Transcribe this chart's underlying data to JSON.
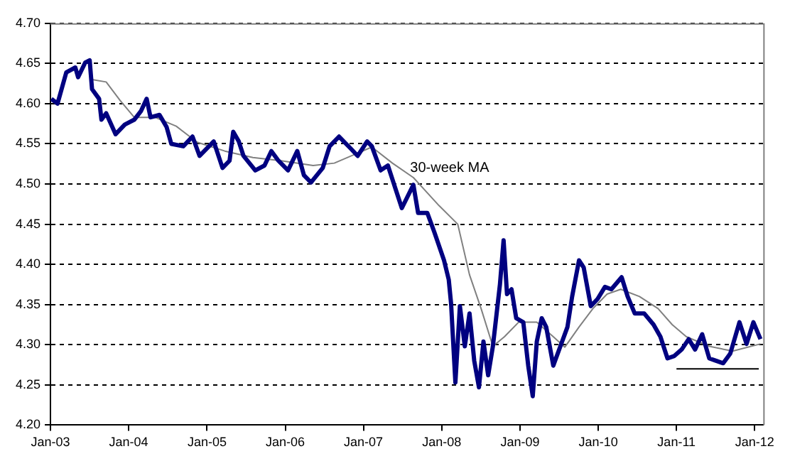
{
  "chart_data": {
    "type": "line",
    "xlim": [
      "2003-01-01",
      "2012-02-10"
    ],
    "xticks": [
      {
        "value": "2003-01-01",
        "label": "Jan-03"
      },
      {
        "value": "2004-01-01",
        "label": "Jan-04"
      },
      {
        "value": "2005-01-01",
        "label": "Jan-05"
      },
      {
        "value": "2006-01-01",
        "label": "Jan-06"
      },
      {
        "value": "2007-01-01",
        "label": "Jan-07"
      },
      {
        "value": "2008-01-01",
        "label": "Jan-08"
      },
      {
        "value": "2009-01-01",
        "label": "Jan-09"
      },
      {
        "value": "2010-01-01",
        "label": "Jan-10"
      },
      {
        "value": "2011-01-01",
        "label": "Jan-11"
      },
      {
        "value": "2012-01-01",
        "label": "Jan-12"
      }
    ],
    "ylim": [
      4.2,
      4.7
    ],
    "yticks": [
      {
        "value": 4.2,
        "label": "4.20"
      },
      {
        "value": 4.25,
        "label": "4.25"
      },
      {
        "value": 4.3,
        "label": "4.30"
      },
      {
        "value": 4.35,
        "label": "4.35"
      },
      {
        "value": 4.4,
        "label": "4.40"
      },
      {
        "value": 4.45,
        "label": "4.45"
      },
      {
        "value": 4.5,
        "label": "4.50"
      },
      {
        "value": 4.55,
        "label": "4.55"
      },
      {
        "value": 4.6,
        "label": "4.60"
      },
      {
        "value": 4.65,
        "label": "4.65"
      },
      {
        "value": 4.7,
        "label": "4.70"
      }
    ],
    "grid": "y",
    "legend": false,
    "marker": "none",
    "annotations": [
      "30-week MA"
    ],
    "series": [
      {
        "color": "#000080",
        "x": [
          "2003-01-05",
          "2003-02-03",
          "2003-03-16",
          "2003-04-27",
          "2003-05-10",
          "2003-06-12",
          "2003-07-03",
          "2003-07-14",
          "2003-08-16",
          "2003-08-27",
          "2003-09-18",
          "2003-11-01",
          "2003-12-14",
          "2004-01-27",
          "2004-02-28",
          "2004-03-25",
          "2004-04-12",
          "2004-05-24",
          "2004-06-26",
          "2004-07-18",
          "2004-09-12",
          "2004-10-25",
          "2004-11-27",
          "2005-02-01",
          "2005-03-14",
          "2005-04-16",
          "2005-05-03",
          "2005-05-29",
          "2005-06-20",
          "2005-08-14",
          "2005-09-26",
          "2005-10-28",
          "2005-11-30",
          "2006-01-14",
          "2006-02-26",
          "2006-03-29",
          "2006-05-01",
          "2006-06-25",
          "2006-07-27",
          "2006-09-09",
          "2006-11-03",
          "2006-12-05",
          "2007-01-18",
          "2007-02-09",
          "2007-03-22",
          "2007-04-25",
          "2007-06-29",
          "2007-08-22",
          "2007-09-13",
          "2007-10-26",
          "2007-11-28",
          "2008-01-12",
          "2008-02-03",
          "2008-02-14",
          "2008-03-05",
          "2008-03-26",
          "2008-04-18",
          "2008-05-10",
          "2008-06-01",
          "2008-06-23",
          "2008-07-14",
          "2008-08-05",
          "2008-08-27",
          "2008-09-29",
          "2008-10-16",
          "2008-11-01",
          "2008-11-22",
          "2008-12-14",
          "2009-01-16",
          "2009-02-08",
          "2009-03-01",
          "2009-03-20",
          "2009-04-12",
          "2009-05-03",
          "2009-06-05",
          "2009-07-08",
          "2009-08-10",
          "2009-09-01",
          "2009-10-03",
          "2009-10-25",
          "2009-11-27",
          "2009-12-29",
          "2010-02-01",
          "2010-03-03",
          "2010-04-20",
          "2010-05-18",
          "2010-06-20",
          "2010-08-03",
          "2010-09-16",
          "2010-10-18",
          "2010-11-20",
          "2010-12-22",
          "2011-01-25",
          "2011-02-27",
          "2011-03-29",
          "2011-05-01",
          "2011-06-03",
          "2011-07-05",
          "2011-08-07",
          "2011-09-09",
          "2011-10-22",
          "2011-11-24",
          "2011-12-26",
          "2012-01-28"
        ],
        "values": [
          4.606,
          4.6,
          4.639,
          4.645,
          4.633,
          4.651,
          4.654,
          4.618,
          4.606,
          4.58,
          4.588,
          4.562,
          4.574,
          4.58,
          4.591,
          4.606,
          4.583,
          4.586,
          4.571,
          4.55,
          4.547,
          4.559,
          4.535,
          4.553,
          4.52,
          4.529,
          4.565,
          4.553,
          4.535,
          4.517,
          4.523,
          4.541,
          4.529,
          4.517,
          4.541,
          4.511,
          4.502,
          4.52,
          4.547,
          4.559,
          4.544,
          4.535,
          4.553,
          4.547,
          4.517,
          4.523,
          4.47,
          4.499,
          4.464,
          4.464,
          4.44,
          4.405,
          4.381,
          4.351,
          4.253,
          4.348,
          4.298,
          4.339,
          4.28,
          4.247,
          4.304,
          4.262,
          4.298,
          4.375,
          4.43,
          4.363,
          4.369,
          4.333,
          4.328,
          4.274,
          4.236,
          4.304,
          4.333,
          4.322,
          4.274,
          4.298,
          4.322,
          4.36,
          4.405,
          4.396,
          4.348,
          4.357,
          4.372,
          4.369,
          4.384,
          4.36,
          4.339,
          4.339,
          4.325,
          4.31,
          4.283,
          4.286,
          4.294,
          4.307,
          4.294,
          4.313,
          4.283,
          4.28,
          4.277,
          4.289,
          4.328,
          4.301,
          4.328,
          4.307
        ]
      },
      {
        "color": "#808080",
        "x": [
          "2003-07-14",
          "2003-09-18",
          "2003-11-22",
          "2004-01-27",
          "2004-05-03",
          "2004-08-10",
          "2004-11-16",
          "2005-03-25",
          "2005-08-03",
          "2005-12-12",
          "2006-05-11",
          "2006-08-18",
          "2007-02-09",
          "2007-05-16",
          "2007-08-22",
          "2007-12-20",
          "2008-03-16",
          "2008-05-10",
          "2008-07-03",
          "2008-08-27",
          "2008-10-20",
          "2008-12-25",
          "2009-03-20",
          "2009-06-05",
          "2009-07-29",
          "2009-10-03",
          "2009-12-07",
          "2010-02-11",
          "2010-04-16",
          "2010-07-12",
          "2010-10-07",
          "2010-12-12",
          "2011-02-16",
          "2011-06-03",
          "2011-09-20",
          "2012-01-28"
        ],
        "values": [
          4.63,
          4.627,
          4.604,
          4.583,
          4.583,
          4.572,
          4.552,
          4.541,
          4.533,
          4.529,
          4.523,
          4.526,
          4.546,
          4.526,
          4.508,
          4.473,
          4.45,
          4.387,
          4.345,
          4.298,
          4.31,
          4.328,
          4.328,
          4.31,
          4.297,
          4.322,
          4.345,
          4.363,
          4.369,
          4.36,
          4.345,
          4.325,
          4.31,
          4.298,
          4.292,
          4.301
        ]
      },
      {
        "color": "#000000",
        "x": [
          "2011-01-01",
          "2012-01-20"
        ],
        "values": [
          4.27,
          4.27
        ]
      }
    ]
  }
}
